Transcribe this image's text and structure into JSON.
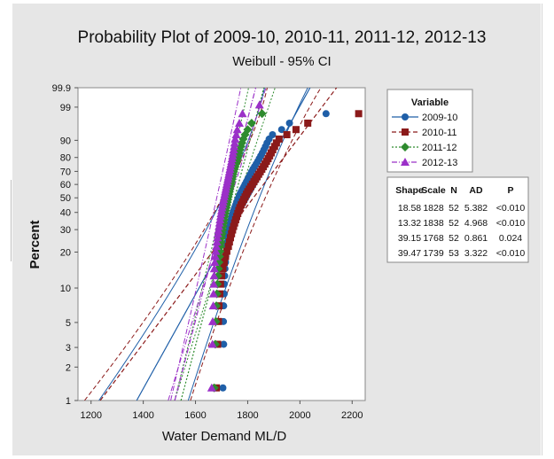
{
  "chart_data": {
    "type": "scatter",
    "title": "Probability Plot of 2009-10, 2010-11, 2011-12, 2012-13",
    "subtitle": "Weibull - 95% CI",
    "xlabel": "Water Demand ML/D",
    "ylabel": "Percent",
    "xlim": [
      1150,
      2250
    ],
    "x_ticks": [
      1200,
      1400,
      1600,
      1800,
      2000,
      2200
    ],
    "y_ticks": [
      1,
      2,
      3,
      5,
      10,
      20,
      30,
      40,
      50,
      60,
      70,
      80,
      90,
      99,
      99.9
    ],
    "y_tick_labels": [
      "1",
      "2",
      "3",
      "5",
      "10",
      "20",
      "30",
      "40",
      "50",
      "60",
      "70",
      "80",
      "90",
      "99",
      "99.9"
    ],
    "grid": false,
    "legend": {
      "title": "Variable",
      "placement": "right",
      "entries": [
        "2009-10",
        "2010-11",
        "2011-12",
        "2012-13"
      ]
    },
    "stats_table": {
      "headers": [
        "Shape",
        "Scale",
        "N",
        "AD",
        "P"
      ],
      "rows": [
        [
          "18.58",
          "1828",
          "52",
          "5.382",
          "<0.010"
        ],
        [
          "13.32",
          "1838",
          "52",
          "4.968",
          "<0.010"
        ],
        [
          "39.15",
          "1768",
          "52",
          "0.861",
          "0.024"
        ],
        [
          "39.47",
          "1739",
          "53",
          "3.322",
          "<0.010"
        ]
      ]
    },
    "series": [
      {
        "name": "2009-10",
        "color": "#1f5fa8",
        "marker": "circle",
        "line": "solid",
        "shape": 18.58,
        "scale": 1828,
        "n": 52,
        "ci_low": 1230,
        "ci_high": 2030,
        "points": [
          [
            1705,
            1.3
          ],
          [
            1708,
            3.2
          ],
          [
            1707,
            5.1
          ],
          [
            1708,
            7.0
          ],
          [
            1710,
            8.9
          ],
          [
            1710,
            10.8
          ],
          [
            1712,
            12.7
          ],
          [
            1713,
            14.6
          ],
          [
            1715,
            16.5
          ],
          [
            1716,
            18.4
          ],
          [
            1718,
            20.3
          ],
          [
            1720,
            22.2
          ],
          [
            1722,
            24.1
          ],
          [
            1724,
            26.0
          ],
          [
            1726,
            27.9
          ],
          [
            1728,
            29.8
          ],
          [
            1730,
            31.7
          ],
          [
            1733,
            33.6
          ],
          [
            1736,
            35.5
          ],
          [
            1739,
            37.4
          ],
          [
            1742,
            39.3
          ],
          [
            1746,
            41.2
          ],
          [
            1750,
            43.1
          ],
          [
            1754,
            45.0
          ],
          [
            1758,
            46.9
          ],
          [
            1762,
            48.8
          ],
          [
            1766,
            50.7
          ],
          [
            1770,
            52.6
          ],
          [
            1775,
            54.5
          ],
          [
            1780,
            56.4
          ],
          [
            1785,
            58.3
          ],
          [
            1790,
            60.2
          ],
          [
            1795,
            62.1
          ],
          [
            1800,
            64.0
          ],
          [
            1805,
            65.9
          ],
          [
            1810,
            67.8
          ],
          [
            1815,
            69.7
          ],
          [
            1820,
            71.6
          ],
          [
            1826,
            73.5
          ],
          [
            1832,
            75.4
          ],
          [
            1838,
            77.3
          ],
          [
            1844,
            79.2
          ],
          [
            1850,
            81.1
          ],
          [
            1856,
            83.0
          ],
          [
            1862,
            84.9
          ],
          [
            1868,
            86.8
          ],
          [
            1874,
            88.7
          ],
          [
            1882,
            90.6
          ],
          [
            1895,
            92.5
          ],
          [
            1930,
            94.4
          ],
          [
            1960,
            96.3
          ],
          [
            2100,
            98.2
          ]
        ]
      },
      {
        "name": "2010-11",
        "color": "#8b1a1a",
        "marker": "square",
        "line": "dashed",
        "shape": 13.32,
        "scale": 1838,
        "n": 52,
        "ci_low": 1175,
        "ci_high": 2080,
        "points": [
          [
            1680,
            1.3
          ],
          [
            1685,
            3.2
          ],
          [
            1688,
            5.1
          ],
          [
            1690,
            7.0
          ],
          [
            1693,
            8.9
          ],
          [
            1696,
            10.8
          ],
          [
            1700,
            12.7
          ],
          [
            1705,
            14.6
          ],
          [
            1710,
            16.5
          ],
          [
            1715,
            18.4
          ],
          [
            1720,
            20.3
          ],
          [
            1726,
            22.2
          ],
          [
            1730,
            24.1
          ],
          [
            1734,
            26.0
          ],
          [
            1738,
            27.9
          ],
          [
            1742,
            29.8
          ],
          [
            1746,
            31.7
          ],
          [
            1750,
            33.6
          ],
          [
            1754,
            35.5
          ],
          [
            1758,
            37.4
          ],
          [
            1762,
            39.3
          ],
          [
            1766,
            41.2
          ],
          [
            1770,
            43.1
          ],
          [
            1775,
            45.0
          ],
          [
            1780,
            46.9
          ],
          [
            1785,
            48.8
          ],
          [
            1790,
            50.7
          ],
          [
            1795,
            52.6
          ],
          [
            1800,
            54.5
          ],
          [
            1806,
            56.4
          ],
          [
            1812,
            58.3
          ],
          [
            1818,
            60.2
          ],
          [
            1824,
            62.1
          ],
          [
            1830,
            64.0
          ],
          [
            1836,
            65.9
          ],
          [
            1842,
            67.8
          ],
          [
            1848,
            69.7
          ],
          [
            1854,
            71.6
          ],
          [
            1860,
            73.5
          ],
          [
            1866,
            75.4
          ],
          [
            1872,
            77.3
          ],
          [
            1878,
            79.2
          ],
          [
            1884,
            81.1
          ],
          [
            1890,
            83.0
          ],
          [
            1896,
            84.9
          ],
          [
            1903,
            86.8
          ],
          [
            1910,
            88.7
          ],
          [
            1920,
            90.6
          ],
          [
            1950,
            92.5
          ],
          [
            1985,
            94.4
          ],
          [
            2030,
            96.3
          ],
          [
            2225,
            98.2
          ]
        ]
      },
      {
        "name": "2011-12",
        "color": "#2e8b2e",
        "marker": "diamond",
        "line": "dotted",
        "shape": 39.15,
        "scale": 1768,
        "n": 52,
        "ci_low": 1520,
        "ci_high": 1905,
        "points": [
          [
            1672,
            1.3
          ],
          [
            1676,
            3.2
          ],
          [
            1678,
            5.1
          ],
          [
            1680,
            7.0
          ],
          [
            1682,
            8.9
          ],
          [
            1684,
            10.8
          ],
          [
            1686,
            12.7
          ],
          [
            1688,
            14.6
          ],
          [
            1690,
            16.5
          ],
          [
            1692,
            18.4
          ],
          [
            1694,
            20.3
          ],
          [
            1696,
            22.2
          ],
          [
            1698,
            24.1
          ],
          [
            1700,
            26.0
          ],
          [
            1702,
            27.9
          ],
          [
            1704,
            29.8
          ],
          [
            1706,
            31.7
          ],
          [
            1708,
            33.6
          ],
          [
            1710,
            35.5
          ],
          [
            1712,
            37.4
          ],
          [
            1714,
            39.3
          ],
          [
            1716,
            41.2
          ],
          [
            1718,
            43.1
          ],
          [
            1720,
            45.0
          ],
          [
            1722,
            46.9
          ],
          [
            1724,
            48.8
          ],
          [
            1726,
            50.7
          ],
          [
            1728,
            52.6
          ],
          [
            1730,
            54.5
          ],
          [
            1732,
            56.4
          ],
          [
            1734,
            58.3
          ],
          [
            1736,
            60.2
          ],
          [
            1738,
            62.1
          ],
          [
            1740,
            64.0
          ],
          [
            1742,
            65.9
          ],
          [
            1744,
            67.8
          ],
          [
            1746,
            69.7
          ],
          [
            1749,
            71.6
          ],
          [
            1752,
            73.5
          ],
          [
            1755,
            75.4
          ],
          [
            1758,
            77.3
          ],
          [
            1761,
            79.2
          ],
          [
            1764,
            81.1
          ],
          [
            1767,
            83.0
          ],
          [
            1770,
            84.9
          ],
          [
            1774,
            86.8
          ],
          [
            1778,
            88.7
          ],
          [
            1783,
            90.6
          ],
          [
            1790,
            92.5
          ],
          [
            1800,
            94.4
          ],
          [
            1815,
            96.3
          ],
          [
            1855,
            98.2
          ]
        ]
      },
      {
        "name": "2012-13",
        "color": "#9b30c8",
        "marker": "triangle",
        "line": "dashdot",
        "shape": 39.47,
        "scale": 1739,
        "n": 53,
        "ci_low": 1505,
        "ci_high": 1870,
        "points": [
          [
            1662,
            1.3
          ],
          [
            1665,
            3.2
          ],
          [
            1666,
            5.1
          ],
          [
            1668,
            7.0
          ],
          [
            1669,
            8.9
          ],
          [
            1670,
            10.8
          ],
          [
            1671,
            12.7
          ],
          [
            1672,
            14.6
          ],
          [
            1674,
            16.5
          ],
          [
            1676,
            18.4
          ],
          [
            1678,
            20.3
          ],
          [
            1680,
            22.2
          ],
          [
            1682,
            24.1
          ],
          [
            1684,
            26.0
          ],
          [
            1686,
            27.9
          ],
          [
            1688,
            29.8
          ],
          [
            1690,
            31.7
          ],
          [
            1692,
            33.6
          ],
          [
            1694,
            35.5
          ],
          [
            1696,
            37.4
          ],
          [
            1698,
            39.3
          ],
          [
            1700,
            41.2
          ],
          [
            1702,
            43.1
          ],
          [
            1704,
            45.0
          ],
          [
            1706,
            46.9
          ],
          [
            1708,
            48.8
          ],
          [
            1710,
            50.7
          ],
          [
            1712,
            52.6
          ],
          [
            1714,
            54.5
          ],
          [
            1716,
            56.4
          ],
          [
            1718,
            58.3
          ],
          [
            1720,
            60.2
          ],
          [
            1722,
            62.1
          ],
          [
            1724,
            64.0
          ],
          [
            1726,
            65.9
          ],
          [
            1728,
            67.8
          ],
          [
            1730,
            69.7
          ],
          [
            1732,
            71.6
          ],
          [
            1734,
            73.5
          ],
          [
            1736,
            75.4
          ],
          [
            1738,
            77.3
          ],
          [
            1740,
            79.2
          ],
          [
            1742,
            81.1
          ],
          [
            1744,
            83.0
          ],
          [
            1746,
            84.9
          ],
          [
            1748,
            86.8
          ],
          [
            1750,
            88.7
          ],
          [
            1752,
            90.6
          ],
          [
            1756,
            92.5
          ],
          [
            1760,
            94.4
          ],
          [
            1768,
            96.3
          ],
          [
            1780,
            98.2
          ],
          [
            1845,
            99.2
          ]
        ]
      }
    ]
  }
}
